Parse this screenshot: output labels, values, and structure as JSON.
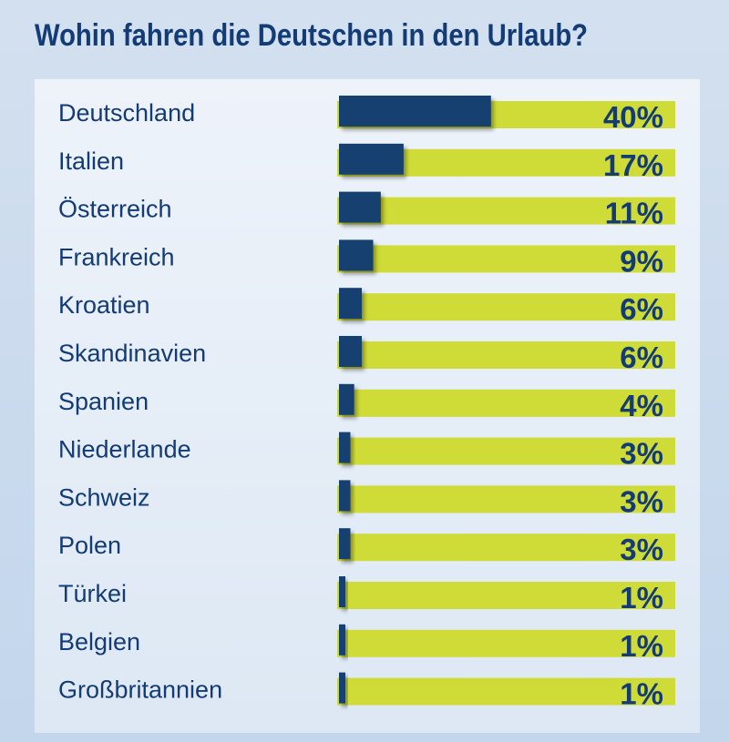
{
  "chart_data": {
    "type": "bar",
    "title": "Wohin fahren die Deutschen in den Urlaub?",
    "categories": [
      "Deutschland",
      "Italien",
      "Österreich",
      "Frankreich",
      "Kroatien",
      "Skandinavien",
      "Spanien",
      "Niederlande",
      "Schweiz",
      "Polen",
      "Türkei",
      "Belgien",
      "Großbritannien"
    ],
    "values": [
      40,
      17,
      11,
      9,
      6,
      6,
      4,
      3,
      3,
      3,
      1,
      1,
      1
    ],
    "value_labels": [
      "40%",
      "17%",
      "11%",
      "9%",
      "6%",
      "6%",
      "4%",
      "3%",
      "3%",
      "3%",
      "1%",
      "1%",
      "1%"
    ],
    "unit": "%",
    "xlim": [
      0,
      100
    ],
    "orientation": "horizontal",
    "grid": false,
    "colors": {
      "bar": "#14406f",
      "track": "#cfdb36",
      "text": "#133b75",
      "title": "#133b75"
    }
  }
}
